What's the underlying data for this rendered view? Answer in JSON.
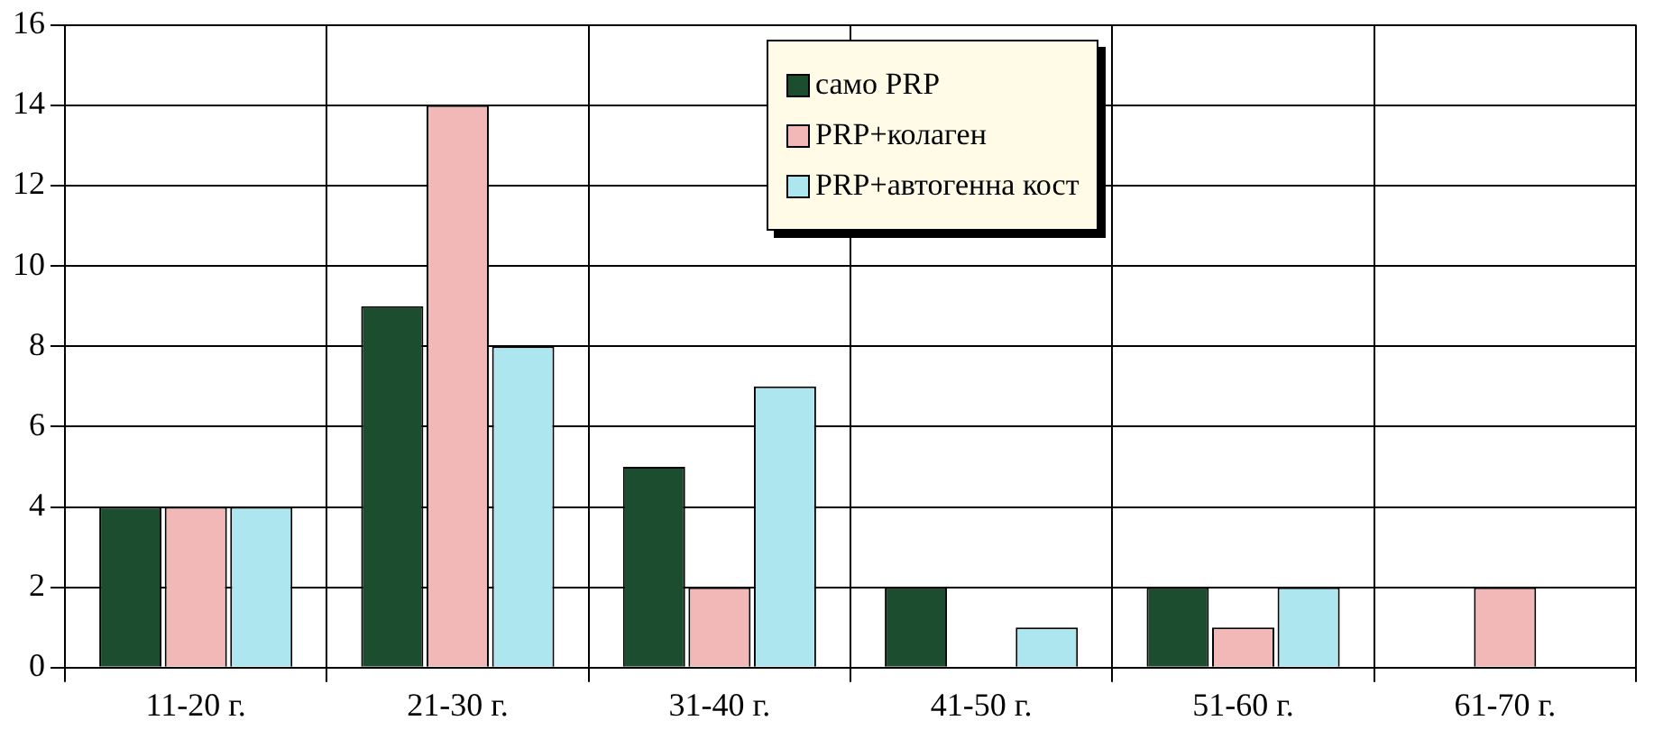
{
  "chart_data": {
    "type": "bar",
    "categories": [
      "11-20 г.",
      "21-30 г.",
      "31-40 г.",
      "41-50 г.",
      "51-60 г.",
      "61-70 г."
    ],
    "series": [
      {
        "name": "само PRP",
        "color": "#1b4d2e",
        "values": [
          4,
          9,
          5,
          2,
          2,
          0
        ]
      },
      {
        "name": "PRP+колаген",
        "color": "#f2b8b8",
        "values": [
          4,
          14,
          2,
          0,
          1,
          2
        ]
      },
      {
        "name": "PRP+автогенна кост",
        "color": "#aee6f0",
        "values": [
          4,
          8,
          7,
          1,
          2,
          0
        ]
      }
    ],
    "ylim": [
      0,
      16
    ],
    "yticks": [
      0,
      2,
      4,
      6,
      8,
      10,
      12,
      14,
      16
    ],
    "grid": true,
    "legend": "top right"
  }
}
